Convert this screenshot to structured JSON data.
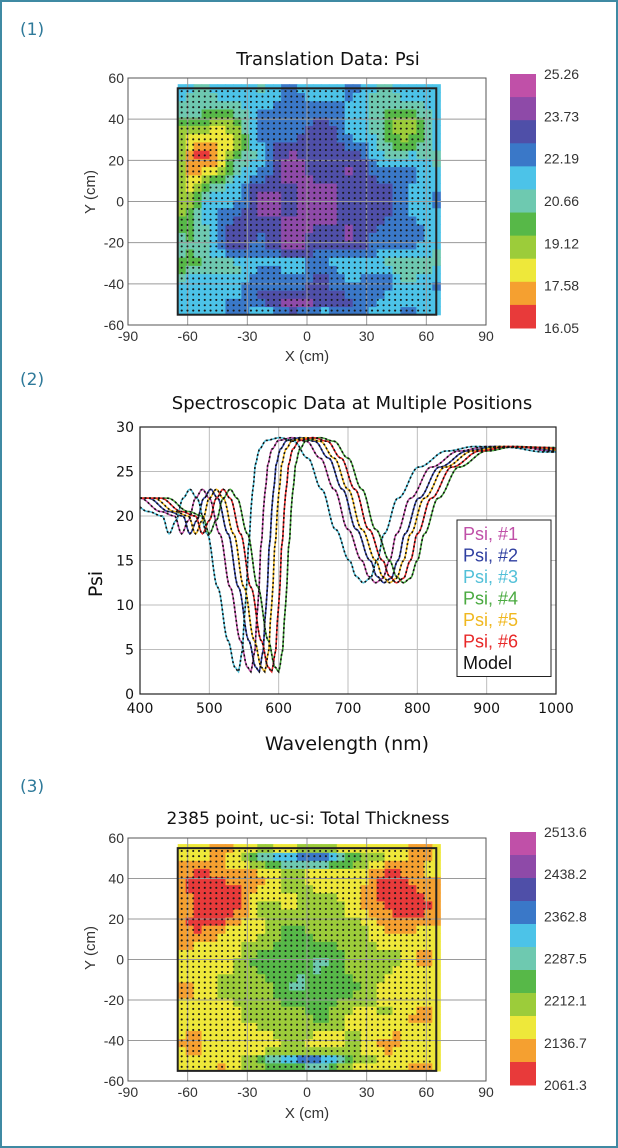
{
  "panels": [
    {
      "label": "(1)"
    },
    {
      "label": "(2)"
    },
    {
      "label": "(3)"
    }
  ],
  "chart_data": [
    {
      "type": "heatmap",
      "title": "Translation Data: Psi",
      "xlabel": "X (cm)",
      "ylabel": "Y (cm)",
      "xlim": [
        -90,
        90
      ],
      "ylim": [
        -60,
        60
      ],
      "xticks": [
        "-90",
        "-60",
        "-30",
        "0",
        "30",
        "60",
        "90"
      ],
      "yticks": [
        "60",
        "40",
        "20",
        "0",
        "-20",
        "-40",
        "-60"
      ],
      "sample_region": {
        "x": [
          -65,
          65
        ],
        "y": [
          -55,
          55
        ]
      },
      "colorbar": {
        "labels": [
          "25.26",
          "23.73",
          "22.19",
          "20.66",
          "19.12",
          "17.58",
          "16.05"
        ],
        "colors": [
          "#c050a8",
          "#8e4aa8",
          "#4f4fa8",
          "#3a78c8",
          "#4cc3e8",
          "#6ec9b0",
          "#57b848",
          "#9ccc3a",
          "#eee83a",
          "#f5a030",
          "#e83a3a"
        ]
      },
      "surface": {
        "type": "psi",
        "center": 23.9,
        "edge": 21.6,
        "cornerHigh": 19.0,
        "bottomBand": 20.8
      },
      "grid": true
    },
    {
      "type": "line",
      "title": "Spectroscopic Data at Multiple Positions",
      "xlabel": "Wavelength (nm)",
      "ylabel": "Psi",
      "xlim": [
        400,
        1000
      ],
      "ylim": [
        0,
        30
      ],
      "xticks": [
        "400",
        "500",
        "600",
        "700",
        "800",
        "900",
        "1000"
      ],
      "yticks": [
        "0",
        "5",
        "10",
        "15",
        "20",
        "25",
        "30"
      ],
      "legend_position": "right",
      "series": [
        {
          "name": "Psi, #1",
          "color": "#c050a8",
          "shift": 0
        },
        {
          "name": "Psi, #2",
          "color": "#2f3fa0",
          "shift": 12
        },
        {
          "name": "Psi, #3",
          "color": "#52c0d8",
          "shift": -18
        },
        {
          "name": "Psi, #4",
          "color": "#4aaa40",
          "shift": 40
        },
        {
          "name": "Psi, #5",
          "color": "#f0b820",
          "shift": 20
        },
        {
          "name": "Psi, #6",
          "color": "#e82828",
          "shift": 30
        },
        {
          "name": "Model",
          "color": "#111111",
          "shift": null
        }
      ],
      "base_curve_x": [
        400,
        430,
        450,
        460,
        470,
        480,
        490,
        500,
        515,
        530,
        545,
        555,
        560,
        565,
        570,
        575,
        580,
        585,
        590,
        600,
        620,
        640,
        660,
        680,
        700,
        720,
        730,
        740,
        750,
        760,
        770,
        790,
        820,
        860,
        900,
        950,
        1000
      ],
      "base_curve_y": [
        22.0,
        20.5,
        20.0,
        18.0,
        19.5,
        22.0,
        23.0,
        22.0,
        18.0,
        12.0,
        6.0,
        3.0,
        2.5,
        4.5,
        10.0,
        17.0,
        22.5,
        26.0,
        27.5,
        28.5,
        28.8,
        28.4,
        26.5,
        23.0,
        18.5,
        15.0,
        13.2,
        12.5,
        13.0,
        15.0,
        18.0,
        22.0,
        25.5,
        27.3,
        27.8,
        27.7,
        27.2
      ],
      "grid": true
    },
    {
      "type": "heatmap",
      "title": "2385 point, uc-si: Total Thickness",
      "xlabel": "X (cm)",
      "ylabel": "Y (cm)",
      "xlim": [
        -90,
        90
      ],
      "ylim": [
        -60,
        60
      ],
      "xticks": [
        "-90",
        "-60",
        "-30",
        "0",
        "30",
        "60",
        "90"
      ],
      "yticks": [
        "60",
        "40",
        "20",
        "0",
        "-20",
        "-40",
        "-60"
      ],
      "sample_region": {
        "x": [
          -65,
          65
        ],
        "y": [
          -55,
          55
        ]
      },
      "colorbar": {
        "labels": [
          "2513.6",
          "2438.2",
          "2362.8",
          "2287.5",
          "2212.1",
          "2136.7",
          "2061.3"
        ],
        "colors": [
          "#c050a8",
          "#8e4aa8",
          "#4f4fa8",
          "#3a78c8",
          "#4cc3e8",
          "#6ec9b0",
          "#57b848",
          "#9ccc3a",
          "#eee83a",
          "#f5a030",
          "#e83a3a"
        ]
      },
      "surface": {
        "type": "thickness",
        "center": 2230,
        "edge": 2150,
        "cornerLow": 2070,
        "topBand": 2380
      },
      "grid": true
    }
  ]
}
